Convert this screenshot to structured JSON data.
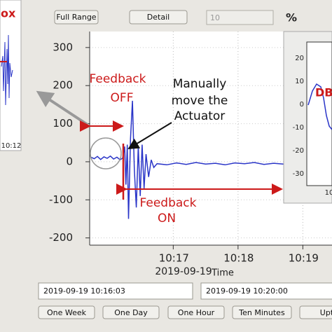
{
  "toolbar": {
    "buttons": [
      "Full Range",
      "Detail"
    ],
    "input": "10",
    "unit": "%"
  },
  "left_panel": {
    "label": "ox",
    "xtick": "10:12"
  },
  "right_panel": {
    "label": "DB",
    "yticks": [
      "20",
      "10",
      "0",
      "-10",
      "-20",
      "-30"
    ],
    "xtick": "10"
  },
  "chart_data": {
    "type": "line",
    "x_label": "Time",
    "x_date": "2019-09-19",
    "x": [
      15.73,
      15.78,
      15.83,
      15.88,
      15.93,
      15.98,
      16.03,
      16.08,
      16.13,
      16.18,
      16.22,
      16.25,
      16.27,
      16.29,
      16.31,
      16.34,
      16.37,
      16.4,
      16.43,
      16.46,
      16.49,
      16.52,
      16.55,
      16.58,
      16.62,
      16.66,
      16.7,
      16.75,
      16.9,
      17.05,
      17.2,
      17.35,
      17.5,
      17.65,
      17.8,
      17.95,
      18.1,
      18.25,
      18.4,
      18.55,
      18.7,
      18.85,
      19.0,
      19.15,
      19.3,
      19.45
    ],
    "series": [
      {
        "color": "#2a35c8",
        "values": [
          12,
          8,
          14,
          6,
          13,
          9,
          15,
          7,
          12,
          5,
          10,
          40,
          -60,
          45,
          -150,
          60,
          160,
          -20,
          -120,
          40,
          -90,
          45,
          -70,
          20,
          -40,
          5,
          -15,
          -5,
          -8,
          -3,
          -7,
          -2,
          -6,
          -4,
          -8,
          -3,
          -5,
          -2,
          -7,
          -4,
          -6,
          -3,
          -5,
          -4,
          -6,
          -3
        ]
      }
    ],
    "xlim": [
      15.71,
      19.45
    ],
    "ylim": [
      -219,
      342
    ],
    "xticks": [
      {
        "value": 17,
        "label": "10:17"
      },
      {
        "value": 18,
        "label": "10:18"
      },
      {
        "value": 19,
        "label": "10:19"
      }
    ],
    "yticks": [
      300,
      200,
      100,
      0,
      -100,
      -200
    ],
    "grid": true,
    "annotations": {
      "feedback_off": [
        "Feedback",
        "OFF"
      ],
      "manual": [
        "Manually",
        "move the",
        "Actuator"
      ],
      "feedback_on": [
        "Feedback",
        "ON"
      ]
    }
  },
  "range": {
    "start": "2019-09-19 10:16:03",
    "end": "2019-09-19 10:20:00"
  },
  "presets": [
    "One Week",
    "One Day",
    "One Hour",
    "Ten Minutes",
    "Upti"
  ]
}
